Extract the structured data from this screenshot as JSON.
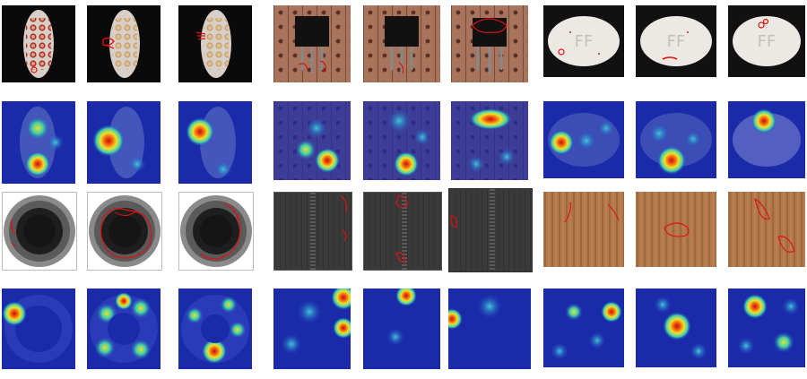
{
  "figure": {
    "panels": [
      {
        "category": "cell-tray",
        "row": "sample",
        "col": 1
      },
      {
        "category": "cell-tray",
        "row": "sample",
        "col": 2
      },
      {
        "category": "cell-tray",
        "row": "sample",
        "col": 3
      },
      {
        "category": "transistor",
        "row": "sample",
        "col": 4
      },
      {
        "category": "transistor",
        "row": "sample",
        "col": 5
      },
      {
        "category": "transistor",
        "row": "sample",
        "col": 6
      },
      {
        "category": "pill",
        "row": "sample",
        "col": 7
      },
      {
        "category": "pill",
        "row": "sample",
        "col": 8
      },
      {
        "category": "pill",
        "row": "sample",
        "col": 9
      },
      {
        "category": "cell-tray",
        "row": "heatmap",
        "col": 1
      },
      {
        "category": "transistor",
        "row": "heatmap",
        "col": 4
      },
      {
        "category": "pill",
        "row": "heatmap",
        "col": 7
      },
      {
        "category": "bottle",
        "row": "sample",
        "col": 1
      },
      {
        "category": "zipper",
        "row": "sample",
        "col": 4
      },
      {
        "category": "wood",
        "row": "sample",
        "col": 7
      },
      {
        "category": "bottle",
        "row": "heatmap",
        "col": 1
      },
      {
        "category": "zipper",
        "row": "heatmap",
        "col": 4
      },
      {
        "category": "wood",
        "row": "heatmap",
        "col": 7
      }
    ],
    "pill_marking": "FF",
    "colors": {
      "defect_outline": "#e01010",
      "heatmap_background": "#1a2aa8",
      "heatmap_hot": "#e81c10",
      "heatmap_warm": "#f5e52a",
      "wood": "#b0774a",
      "tray": "#2a1c1c",
      "transistor_board": "#a9745d"
    }
  }
}
